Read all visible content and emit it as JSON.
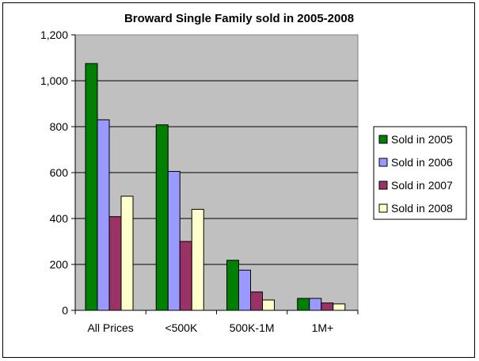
{
  "chart_data": {
    "type": "bar",
    "title": "Broward Single Family sold in 2005-2008",
    "categories": [
      "All Prices",
      "<500K",
      "500K-1M",
      "1M+"
    ],
    "series": [
      {
        "name": "Sold in 2005",
        "color": "#008000",
        "values": [
          1075,
          808,
          218,
          52
        ]
      },
      {
        "name": "Sold in 2006",
        "color": "#9999FF",
        "values": [
          830,
          605,
          175,
          52
        ]
      },
      {
        "name": "Sold in 2007",
        "color": "#993366",
        "values": [
          408,
          300,
          80,
          32
        ]
      },
      {
        "name": "Sold in 2008",
        "color": "#FFFFCC",
        "values": [
          497,
          440,
          45,
          28
        ]
      }
    ],
    "yticks": [
      "0",
      "200",
      "400",
      "600",
      "800",
      "1,000",
      "1,200"
    ],
    "ylim": [
      0,
      1200
    ],
    "grid": true,
    "plot_background": "#C0C0C0",
    "legend_position": "right"
  }
}
